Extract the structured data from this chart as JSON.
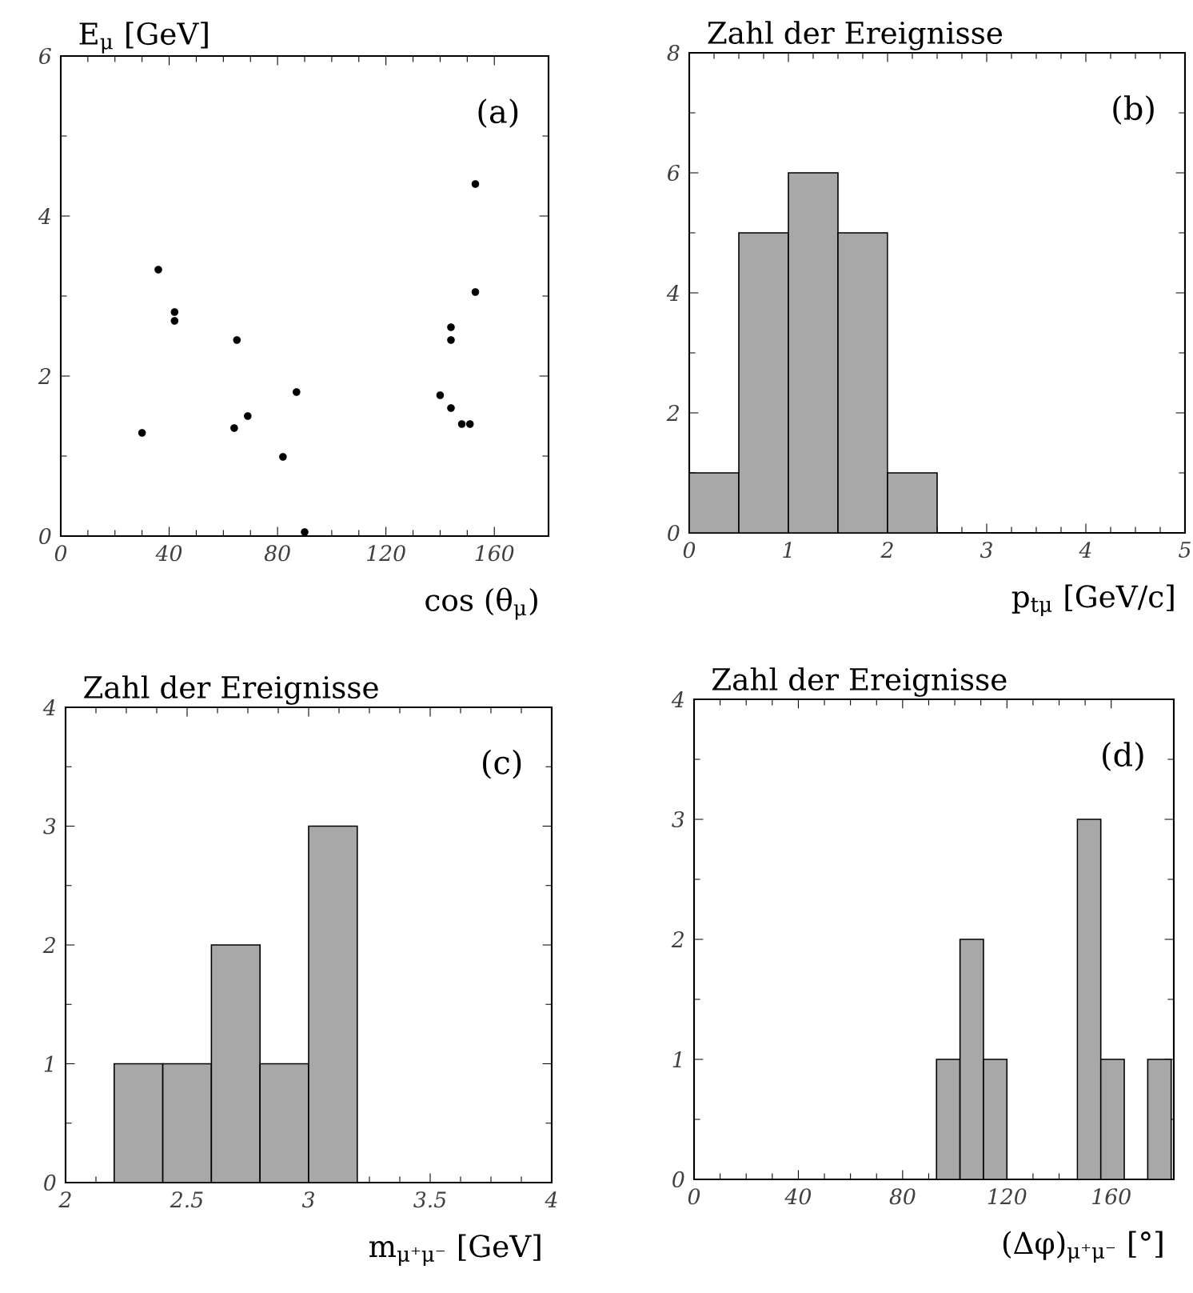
{
  "chart_data": [
    {
      "type": "scatter",
      "ylabel": "E$_{μ}$  [GeV]",
      "xlabel": "cos (θ$_{μ}$)",
      "annotations": [
        "(a)"
      ],
      "color": "#000000",
      "marker": "circle",
      "x": [
        30,
        36,
        42,
        42,
        64,
        65,
        69,
        82,
        87,
        90,
        140,
        144,
        144,
        144,
        148,
        151,
        153,
        153
      ],
      "values": [
        1.29,
        3.33,
        2.8,
        2.69,
        1.35,
        2.45,
        1.5,
        0.99,
        1.8,
        0.05,
        1.76,
        2.61,
        2.45,
        1.6,
        1.4,
        1.4,
        4.4,
        3.05
      ],
      "xlim": [
        0,
        180
      ],
      "ylim": [
        0,
        6
      ],
      "xticks": [
        0,
        40,
        80,
        120,
        160
      ],
      "yticks": [
        0,
        2,
        4,
        6
      ]
    },
    {
      "type": "histogram",
      "ylabel": "Zahl der Ereignisse",
      "xlabel": "p$_{tμ}$  [GeV/c]",
      "annotations": [
        "(b)"
      ],
      "color": "#a8a8a8",
      "bins": [
        0,
        0.5,
        1,
        1.5,
        2,
        2.5
      ],
      "values": [
        1,
        5,
        6,
        5,
        1
      ],
      "xlim": [
        0,
        5
      ],
      "ylim": [
        0,
        8
      ],
      "xticks": [
        0,
        1,
        2,
        3,
        4,
        5
      ],
      "yticks": [
        0,
        2,
        4,
        6,
        8
      ]
    },
    {
      "type": "histogram",
      "ylabel": "Zahl der Ereignisse",
      "xlabel": "m$_{μ⁺μ⁻}$  [GeV]",
      "annotations": [
        "(c)"
      ],
      "color": "#a8a8a8",
      "bins": [
        2.2,
        2.4,
        2.6,
        2.8,
        3.0,
        3.2
      ],
      "values": [
        1,
        1,
        2,
        1,
        3
      ],
      "xlim": [
        2,
        4
      ],
      "ylim": [
        0,
        4
      ],
      "xticks": [
        2,
        2.5,
        3,
        3.5,
        4
      ],
      "yticks": [
        0,
        1,
        2,
        3,
        4
      ]
    },
    {
      "type": "histogram",
      "ylabel": "Zahl der Ereignisse",
      "xlabel": "(Δφ)$_{μ⁺μ⁻}$  [°]",
      "annotations": [
        "(d)"
      ],
      "color": "#a8a8a8",
      "bins": [
        93,
        102,
        111,
        120,
        129,
        138,
        147,
        156,
        165,
        174,
        183
      ],
      "values": [
        1,
        2,
        1,
        0,
        0,
        0,
        3,
        1,
        0,
        1
      ],
      "xlim": [
        0,
        184
      ],
      "ylim": [
        0,
        4
      ],
      "xticks": [
        0,
        40,
        80,
        120,
        160
      ],
      "yticks": [
        0,
        1,
        2,
        3,
        4
      ]
    }
  ]
}
